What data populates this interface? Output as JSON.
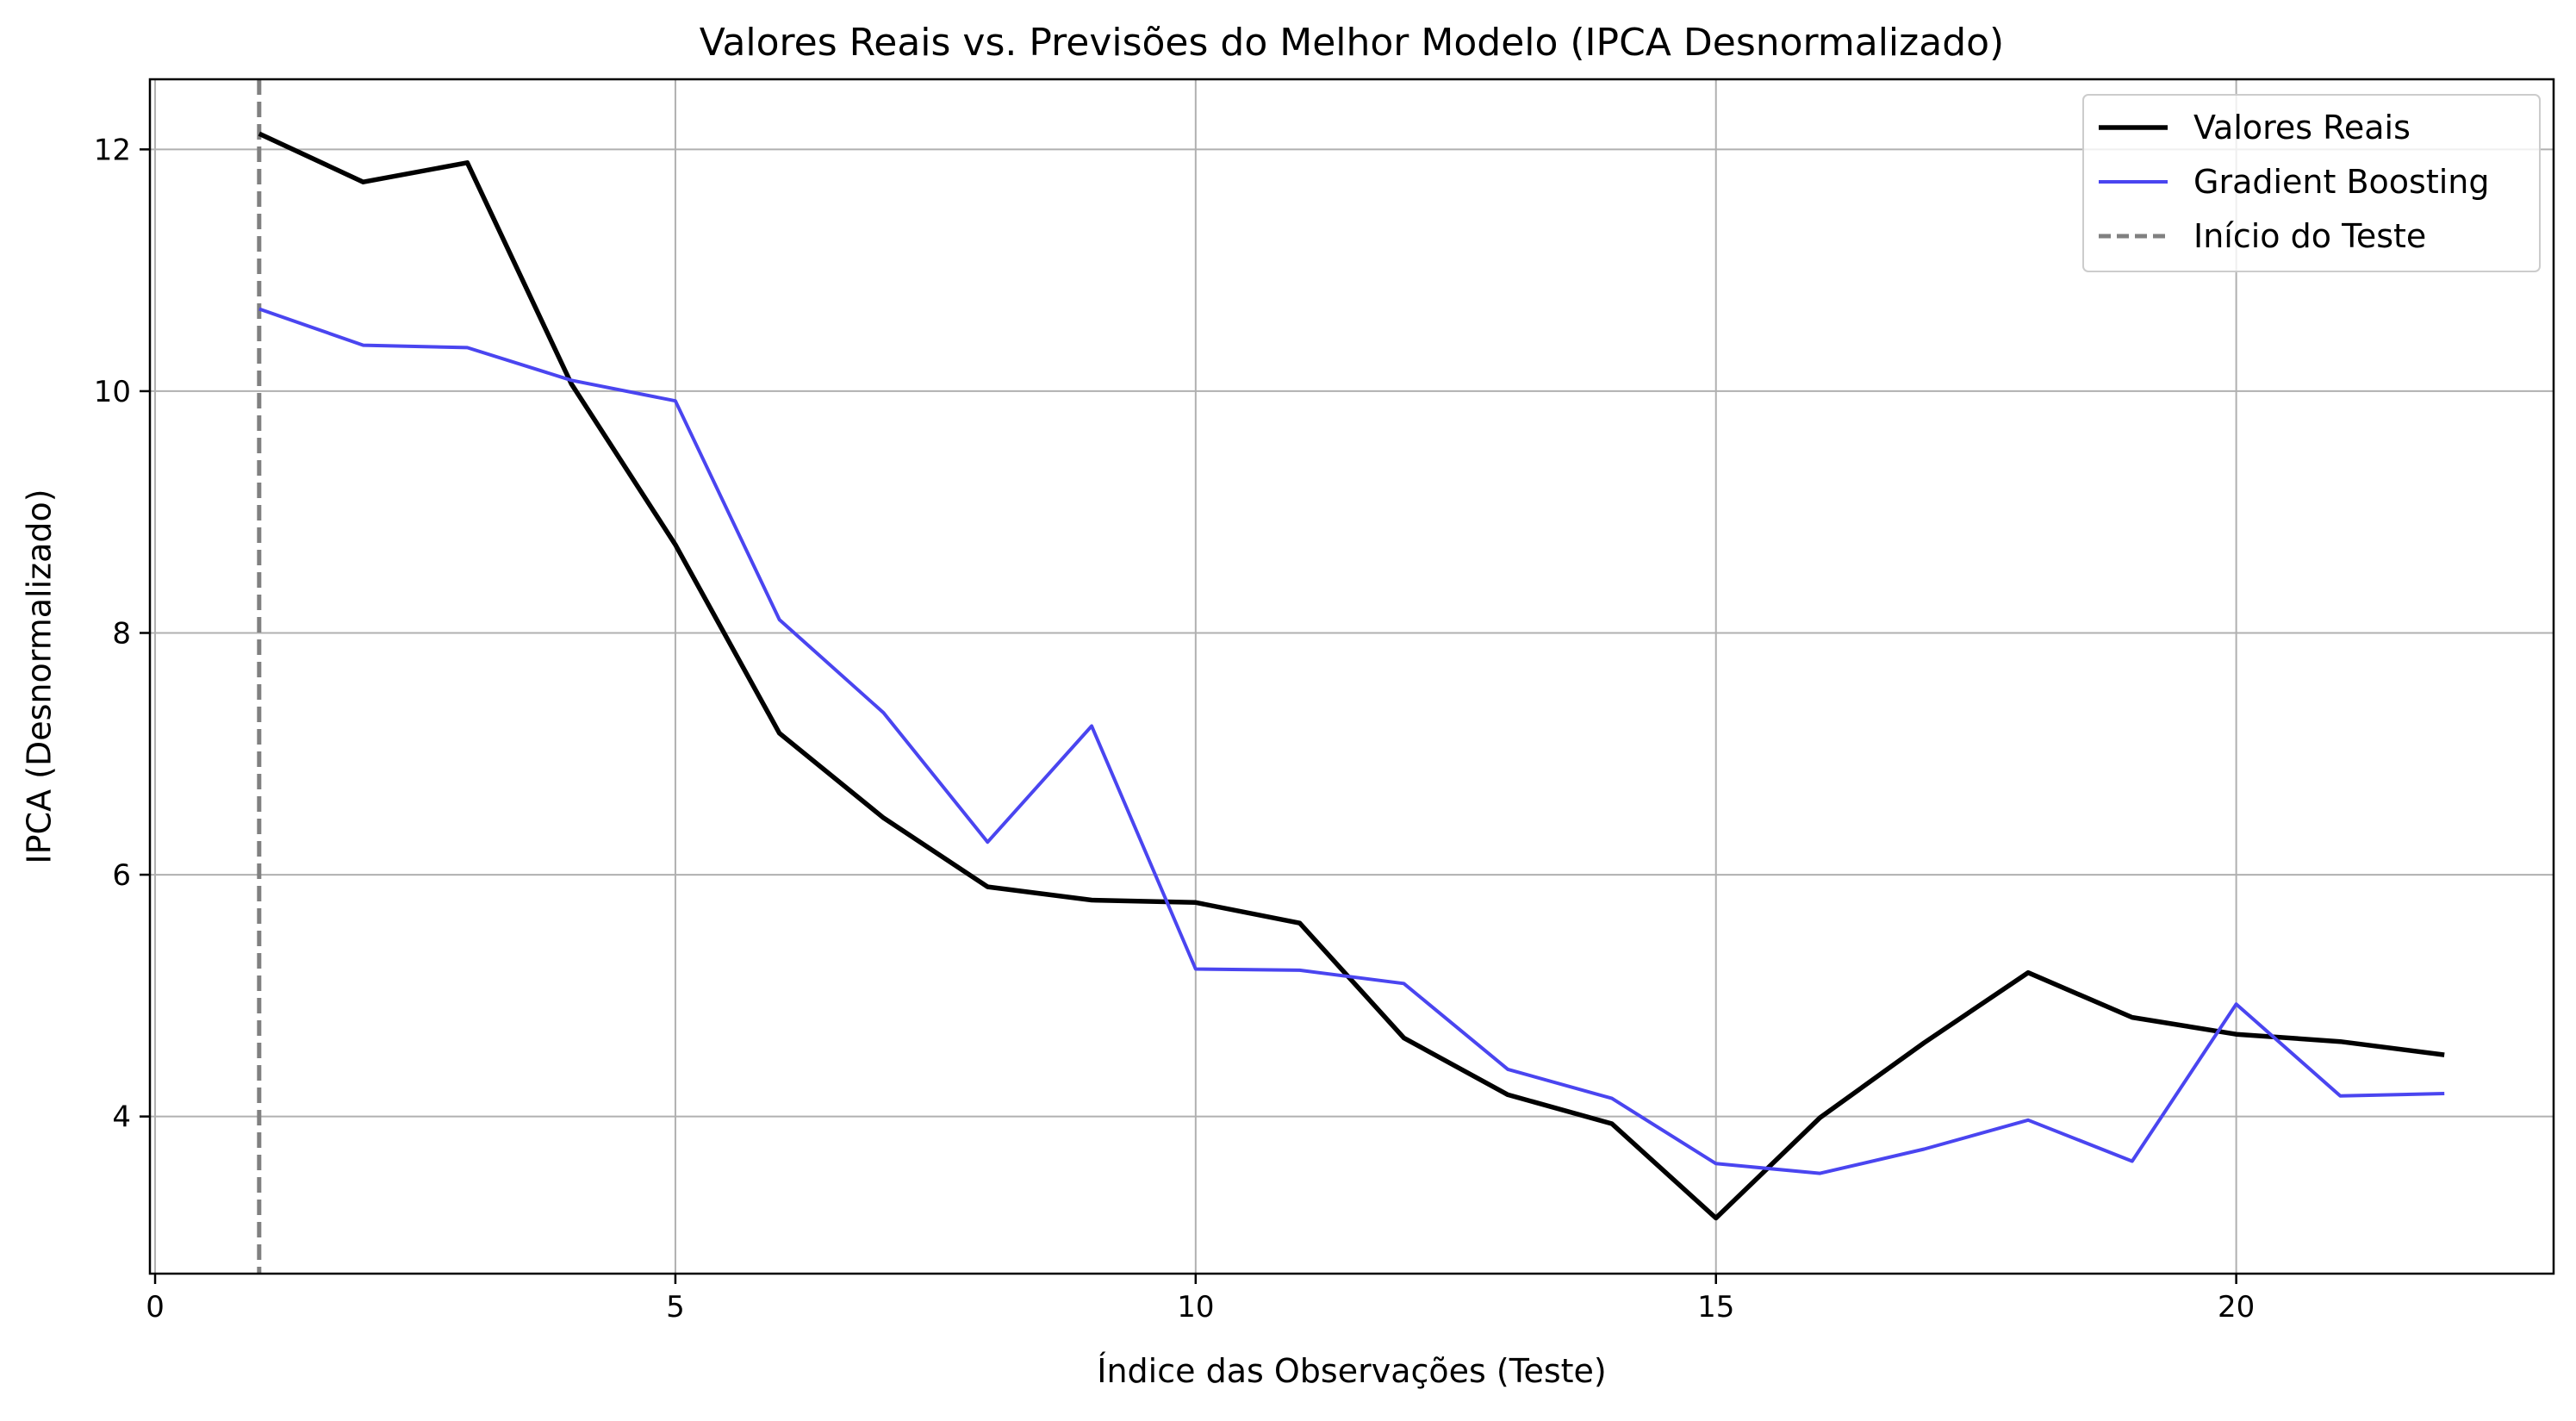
{
  "chart_data": {
    "type": "line",
    "title": "Valores Reais vs. Previsões do Melhor Modelo (IPCA Desnormalizado)",
    "xlabel": "Índice das Observações (Teste)",
    "ylabel": "IPCA (Desnormalizado)",
    "xlim": [
      -0.05,
      23.05
    ],
    "ylim": [
      2.7,
      12.58
    ],
    "xticks": [
      0,
      5,
      10,
      15,
      20
    ],
    "yticks": [
      4,
      6,
      8,
      10,
      12
    ],
    "grid": true,
    "legend_position": "top-right",
    "x": [
      1,
      2,
      3,
      4,
      5,
      6,
      7,
      8,
      9,
      10,
      11,
      12,
      13,
      14,
      15,
      16,
      17,
      18,
      19,
      20,
      21,
      22
    ],
    "series": [
      {
        "name": "Valores Reais",
        "color": "#000000",
        "style": "solid",
        "values": [
          12.13,
          11.73,
          11.89,
          10.06,
          8.73,
          7.17,
          6.47,
          5.9,
          5.79,
          5.77,
          5.6,
          4.65,
          4.18,
          3.94,
          3.16,
          3.99,
          4.61,
          5.19,
          4.82,
          4.68,
          4.62,
          4.51
        ]
      },
      {
        "name": "Gradient Boosting",
        "color": "#4a45f0",
        "style": "solid",
        "values": [
          10.68,
          10.38,
          10.36,
          10.09,
          9.92,
          8.11,
          7.34,
          6.27,
          7.23,
          5.22,
          5.21,
          5.1,
          4.39,
          4.15,
          3.61,
          3.53,
          3.73,
          3.97,
          3.63,
          4.93,
          4.17,
          4.19
        ]
      }
    ],
    "annotations": [
      {
        "name": "Início do Teste",
        "type": "vline",
        "x": 1,
        "color": "#808080",
        "style": "dashed"
      }
    ]
  }
}
